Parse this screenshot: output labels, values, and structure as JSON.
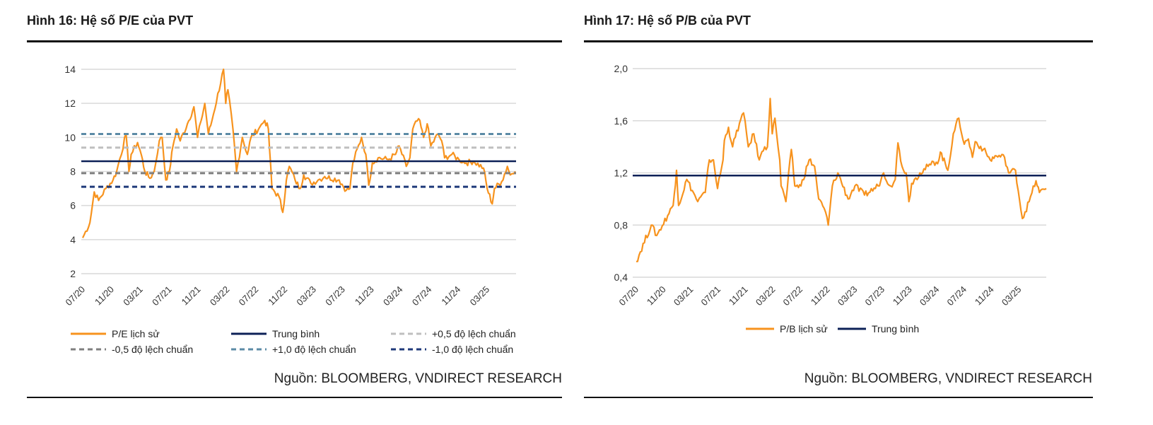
{
  "chart_data": [
    {
      "type": "line",
      "title": "Hình 16: Hệ số P/E của PVT",
      "source": "Nguồn: BLOOMBERG, VNDIRECT RESEARCH",
      "x_unit": "months since 07/20",
      "xlabel": "",
      "ylabel": "",
      "ylim": [
        2,
        14
      ],
      "yticks": [
        2,
        4,
        6,
        8,
        10,
        12,
        14
      ],
      "ytick_labels": [
        "2",
        "4",
        "6",
        "8",
        "10",
        "12",
        "14"
      ],
      "xticks": [
        0,
        4,
        8,
        12,
        16,
        20,
        24,
        28,
        32,
        36,
        40,
        44,
        48,
        52,
        56
      ],
      "xtick_labels": [
        "07/20",
        "11/20",
        "03/21",
        "07/21",
        "11/21",
        "03/22",
        "07/22",
        "11/22",
        "03/23",
        "07/23",
        "11/23",
        "03/24",
        "07/24",
        "11/24",
        "03/25"
      ],
      "xlim": [
        0,
        60
      ],
      "grid": true,
      "legend_placement": "bottom",
      "series": [
        {
          "name": "P/E lịch sử",
          "color": "#F7931E",
          "style": "solid",
          "x": [
            0,
            1.0,
            1.6,
            2.2,
            3.2,
            4.2,
            4.7,
            6.0,
            6.4,
            6.7,
            7.6,
            8.1,
            8.6,
            9.3,
            9.9,
            10.6,
            11.0,
            11.5,
            12.0,
            12.5,
            13.0,
            13.5,
            14.5,
            15.4,
            15.9,
            16.4,
            16.9,
            17.4,
            17.9,
            19.5,
            19.8,
            20.1,
            20.8,
            21.3,
            22.1,
            22.8,
            23.3,
            24.5,
            25.2,
            25.7,
            26.2,
            27.2,
            27.7,
            28.2,
            28.6,
            29.4,
            30.1,
            30.6,
            31.6,
            32.6,
            33.5,
            35.5,
            36.5,
            37.0,
            37.4,
            38.6,
            39.2,
            39.6,
            40.1,
            40.9,
            42.3,
            43.3,
            43.8,
            44.8,
            45.3,
            45.7,
            46.5,
            47.2,
            47.7,
            48.2,
            49.2,
            49.7,
            50.1,
            51.1,
            52.1,
            53.1,
            54.1,
            55.5,
            56.0,
            56.7,
            57.0,
            58.0,
            58.8,
            59.2,
            59.9
          ],
          "y": [
            4.1,
            5.0,
            6.8,
            6.3,
            7.0,
            7.5,
            8.0,
            10.2,
            8.0,
            9.0,
            9.7,
            9.0,
            8.0,
            7.6,
            8.0,
            9.8,
            10.0,
            7.5,
            8.0,
            9.5,
            10.5,
            9.8,
            10.8,
            11.8,
            10.0,
            11.0,
            12.0,
            10.2,
            11.0,
            14.0,
            12.0,
            12.8,
            10.5,
            8.0,
            10.0,
            9.0,
            10.0,
            10.6,
            11.0,
            10.5,
            7.0,
            6.5,
            5.6,
            7.5,
            8.3,
            7.5,
            7.0,
            7.8,
            7.3,
            7.5,
            7.7,
            7.5,
            6.9,
            7.0,
            8.5,
            10.0,
            9.0,
            7.2,
            8.5,
            8.8,
            8.7,
            9.0,
            9.5,
            8.3,
            8.8,
            10.5,
            11.1,
            10.0,
            10.8,
            9.5,
            10.2,
            9.8,
            8.8,
            9.0,
            8.7,
            8.5,
            8.6,
            8.2,
            7.0,
            6.1,
            7.0,
            7.4,
            8.3,
            7.8,
            8.0
          ]
        },
        {
          "name": "Trung bình",
          "color": "#0D2157",
          "style": "solid",
          "constant": 8.6
        },
        {
          "name": "+0,5 độ lệch chuẩn",
          "color": "#BFBFBF",
          "style": "dashed",
          "constant": 9.4
        },
        {
          "name": "-0,5 độ lệch chuẩn",
          "color": "#7F7F7F",
          "style": "dashed",
          "constant": 7.9
        },
        {
          "name": "+1,0 độ lệch chuẩn",
          "color": "#5B8BA6",
          "style": "dashed",
          "constant": 10.2
        },
        {
          "name": "-1,0 độ lệch chuẩn",
          "color": "#1F3A7A",
          "style": "dashed",
          "constant": 7.1
        }
      ]
    },
    {
      "type": "line",
      "title": "Hình 17: Hệ số P/B của PVT",
      "source": "Nguồn: BLOOMBERG, VNDIRECT RESEARCH",
      "x_unit": "months since 07/20",
      "xlabel": "",
      "ylabel": "",
      "ylim": [
        0.4,
        2.0
      ],
      "yticks": [
        0.4,
        0.8,
        1.2,
        1.6,
        2.0
      ],
      "ytick_labels": [
        "0,4",
        "0,8",
        "1,2",
        "1,6",
        "2,0"
      ],
      "xticks": [
        0,
        4,
        8,
        12,
        16,
        20,
        24,
        28,
        32,
        36,
        40,
        44,
        48,
        52,
        56
      ],
      "xtick_labels": [
        "07/20",
        "11/20",
        "03/21",
        "07/21",
        "11/21",
        "03/22",
        "07/22",
        "11/22",
        "03/23",
        "07/23",
        "11/23",
        "03/24",
        "07/24",
        "11/24",
        "03/25"
      ],
      "xlim": [
        0,
        60
      ],
      "grid": true,
      "legend_placement": "bottom",
      "series": [
        {
          "name": "P/B lịch sử",
          "color": "#F7931E",
          "style": "solid",
          "x": [
            0,
            2.2,
            3.0,
            5.4,
            5.9,
            6.2,
            7.4,
            9.0,
            10.1,
            10.7,
            11.3,
            11.9,
            12.7,
            12.9,
            13.5,
            14.1,
            15.1,
            15.7,
            16.4,
            17.2,
            18.0,
            18.8,
            19.2,
            19.6,
            19.9,
            20.3,
            21.0,
            21.2,
            21.9,
            22.7,
            23.2,
            24.1,
            25.3,
            26.1,
            26.7,
            27.7,
            28.1,
            28.7,
            29.5,
            31.0,
            32.0,
            33.4,
            35.4,
            36.2,
            37.2,
            37.9,
            38.3,
            38.9,
            39.5,
            39.9,
            40.3,
            41.5,
            42.7,
            44.3,
            44.5,
            45.6,
            46.4,
            47.2,
            48.0,
            48.6,
            49.2,
            49.6,
            50.8,
            51.8,
            52.7,
            53.9,
            54.5,
            55.5,
            56.5,
            57.5,
            58.5,
            59.0,
            60.0
          ],
          "y": [
            0.52,
            0.8,
            0.72,
            0.95,
            1.22,
            0.95,
            1.15,
            0.98,
            1.05,
            1.3,
            1.3,
            1.08,
            1.3,
            1.45,
            1.55,
            1.4,
            1.58,
            1.66,
            1.4,
            1.5,
            1.3,
            1.4,
            1.4,
            1.77,
            1.5,
            1.62,
            1.3,
            1.1,
            0.98,
            1.38,
            1.1,
            1.1,
            1.3,
            1.25,
            1.0,
            0.9,
            0.8,
            1.1,
            1.2,
            1.0,
            1.1,
            1.03,
            1.1,
            1.2,
            1.1,
            1.15,
            1.43,
            1.25,
            1.2,
            0.98,
            1.12,
            1.2,
            1.25,
            1.3,
            1.36,
            1.22,
            1.5,
            1.62,
            1.42,
            1.46,
            1.32,
            1.44,
            1.38,
            1.3,
            1.33,
            1.32,
            1.2,
            1.22,
            0.85,
            0.98,
            1.14,
            1.05,
            1.08
          ]
        },
        {
          "name": "Trung bình",
          "color": "#0D2157",
          "style": "solid",
          "constant": 1.18
        }
      ]
    }
  ]
}
